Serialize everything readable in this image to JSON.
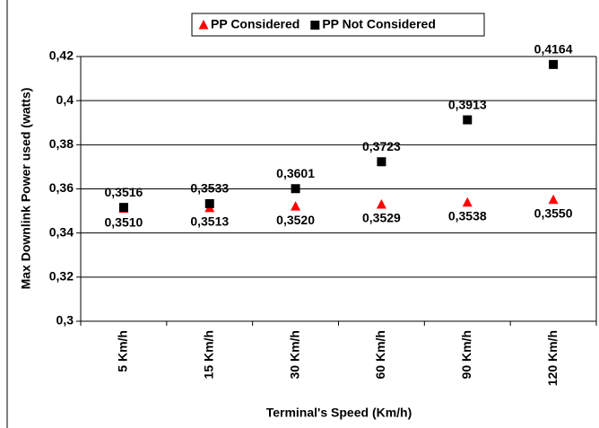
{
  "chart_data": {
    "type": "scatter",
    "x_label": "Terminal's Speed (Km/h)",
    "y_label": "Max Downlink Power used (watts)",
    "categories": [
      "5 Km/h",
      "15 Km/h",
      "30 Km/h",
      "60 Km/h",
      "90 Km/h",
      "120 Km/h"
    ],
    "series": [
      {
        "name": "PP Considered",
        "color": "#ff0000",
        "marker": "triangle",
        "values": [
          0.351,
          0.3513,
          0.352,
          0.3529,
          0.3538,
          0.355
        ],
        "value_labels": [
          "0,3510",
          "0,3513",
          "0,3520",
          "0,3529",
          "0,3538",
          "0,3550"
        ]
      },
      {
        "name": "PP Not Considered",
        "color": "#000000",
        "marker": "square",
        "values": [
          0.3516,
          0.3533,
          0.3601,
          0.3723,
          0.3913,
          0.4164
        ],
        "value_labels": [
          "0,3516",
          "0,3533",
          "0,3601",
          "0,3723",
          "0,3913",
          "0,4164"
        ]
      }
    ],
    "ylim": [
      0.3,
      0.42
    ],
    "yticks": [
      {
        "value": 0.3,
        "label": "0,3"
      },
      {
        "value": 0.32,
        "label": "0,32"
      },
      {
        "value": 0.34,
        "label": "0,34"
      },
      {
        "value": 0.36,
        "label": "0,36"
      },
      {
        "value": 0.38,
        "label": "0,38"
      },
      {
        "value": 0.4,
        "label": "0,4"
      },
      {
        "value": 0.42,
        "label": "0,42"
      }
    ],
    "grid": true,
    "legend": "top"
  }
}
